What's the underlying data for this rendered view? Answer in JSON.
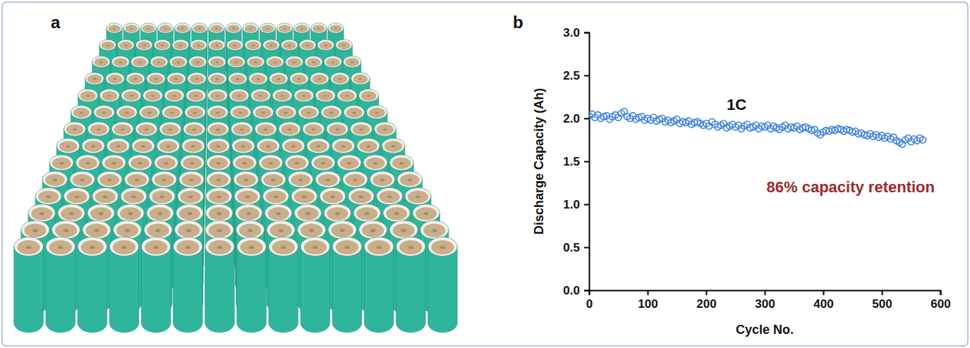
{
  "image_panel": {
    "label": "a"
  },
  "chart_data": {
    "type": "scatter",
    "panel_label": "b",
    "x_label": "Cycle No.",
    "y_label": "Discharge Capacity (Ah)",
    "annotations": [
      "1C",
      "86% capacity retention"
    ],
    "color": "#3b7fd9",
    "marker": "circle-open",
    "xlim": [
      0,
      600
    ],
    "xticks": [
      0,
      100,
      200,
      300,
      400,
      500,
      600
    ],
    "ylim": [
      0,
      3
    ],
    "yticks": [
      {
        "value": 0,
        "label": "0.0"
      },
      {
        "value": 0.5,
        "label": "0.5"
      },
      {
        "value": 1,
        "label": "1.0"
      },
      {
        "value": 1.5,
        "label": "1.5"
      },
      {
        "value": 2,
        "label": "2.0"
      },
      {
        "value": 2.5,
        "label": "2.5"
      },
      {
        "value": 3,
        "label": "3.0"
      }
    ],
    "grid": false,
    "x": [
      0,
      5,
      10,
      15,
      20,
      25,
      30,
      35,
      40,
      45,
      50,
      55,
      60,
      65,
      70,
      75,
      80,
      85,
      90,
      95,
      100,
      105,
      110,
      115,
      120,
      125,
      130,
      135,
      140,
      145,
      150,
      155,
      160,
      165,
      170,
      175,
      180,
      185,
      190,
      195,
      200,
      205,
      210,
      215,
      220,
      225,
      230,
      235,
      240,
      245,
      250,
      255,
      260,
      265,
      270,
      275,
      280,
      285,
      290,
      295,
      300,
      305,
      310,
      315,
      320,
      325,
      330,
      335,
      340,
      345,
      350,
      355,
      360,
      365,
      370,
      375,
      380,
      385,
      390,
      395,
      400,
      405,
      410,
      415,
      420,
      425,
      430,
      435,
      440,
      445,
      450,
      455,
      460,
      465,
      470,
      475,
      480,
      485,
      490,
      495,
      500,
      505,
      510,
      515,
      520,
      525,
      530,
      535,
      540,
      545,
      550,
      555,
      560,
      565,
      570
    ],
    "values": [
      2.03,
      2.05,
      2.01,
      2.04,
      2.0,
      2.02,
      2.03,
      1.99,
      2.02,
      2.04,
      2.01,
      2.06,
      2.08,
      2.02,
      2.0,
      2.03,
      1.99,
      2.01,
      2.02,
      1.98,
      2.0,
      1.98,
      2.01,
      1.97,
      1.99,
      2.0,
      1.96,
      1.98,
      1.95,
      1.97,
      1.99,
      1.94,
      1.96,
      1.95,
      1.97,
      1.93,
      1.95,
      1.96,
      1.94,
      1.92,
      1.94,
      1.91,
      1.96,
      1.93,
      1.9,
      1.92,
      1.94,
      1.89,
      1.91,
      1.93,
      1.9,
      1.92,
      1.88,
      1.91,
      1.93,
      1.89,
      1.9,
      1.92,
      1.88,
      1.91,
      1.9,
      1.92,
      1.88,
      1.91,
      1.89,
      1.87,
      1.9,
      1.92,
      1.88,
      1.9,
      1.89,
      1.91,
      1.87,
      1.89,
      1.9,
      1.88,
      1.86,
      1.87,
      1.83,
      1.81,
      1.84,
      1.86,
      1.85,
      1.87,
      1.86,
      1.88,
      1.87,
      1.85,
      1.87,
      1.86,
      1.84,
      1.85,
      1.82,
      1.83,
      1.81,
      1.8,
      1.82,
      1.79,
      1.81,
      1.78,
      1.8,
      1.77,
      1.79,
      1.76,
      1.78,
      1.74,
      1.72,
      1.7,
      1.75,
      1.77,
      1.73,
      1.76,
      1.74,
      1.77,
      1.75
    ]
  }
}
